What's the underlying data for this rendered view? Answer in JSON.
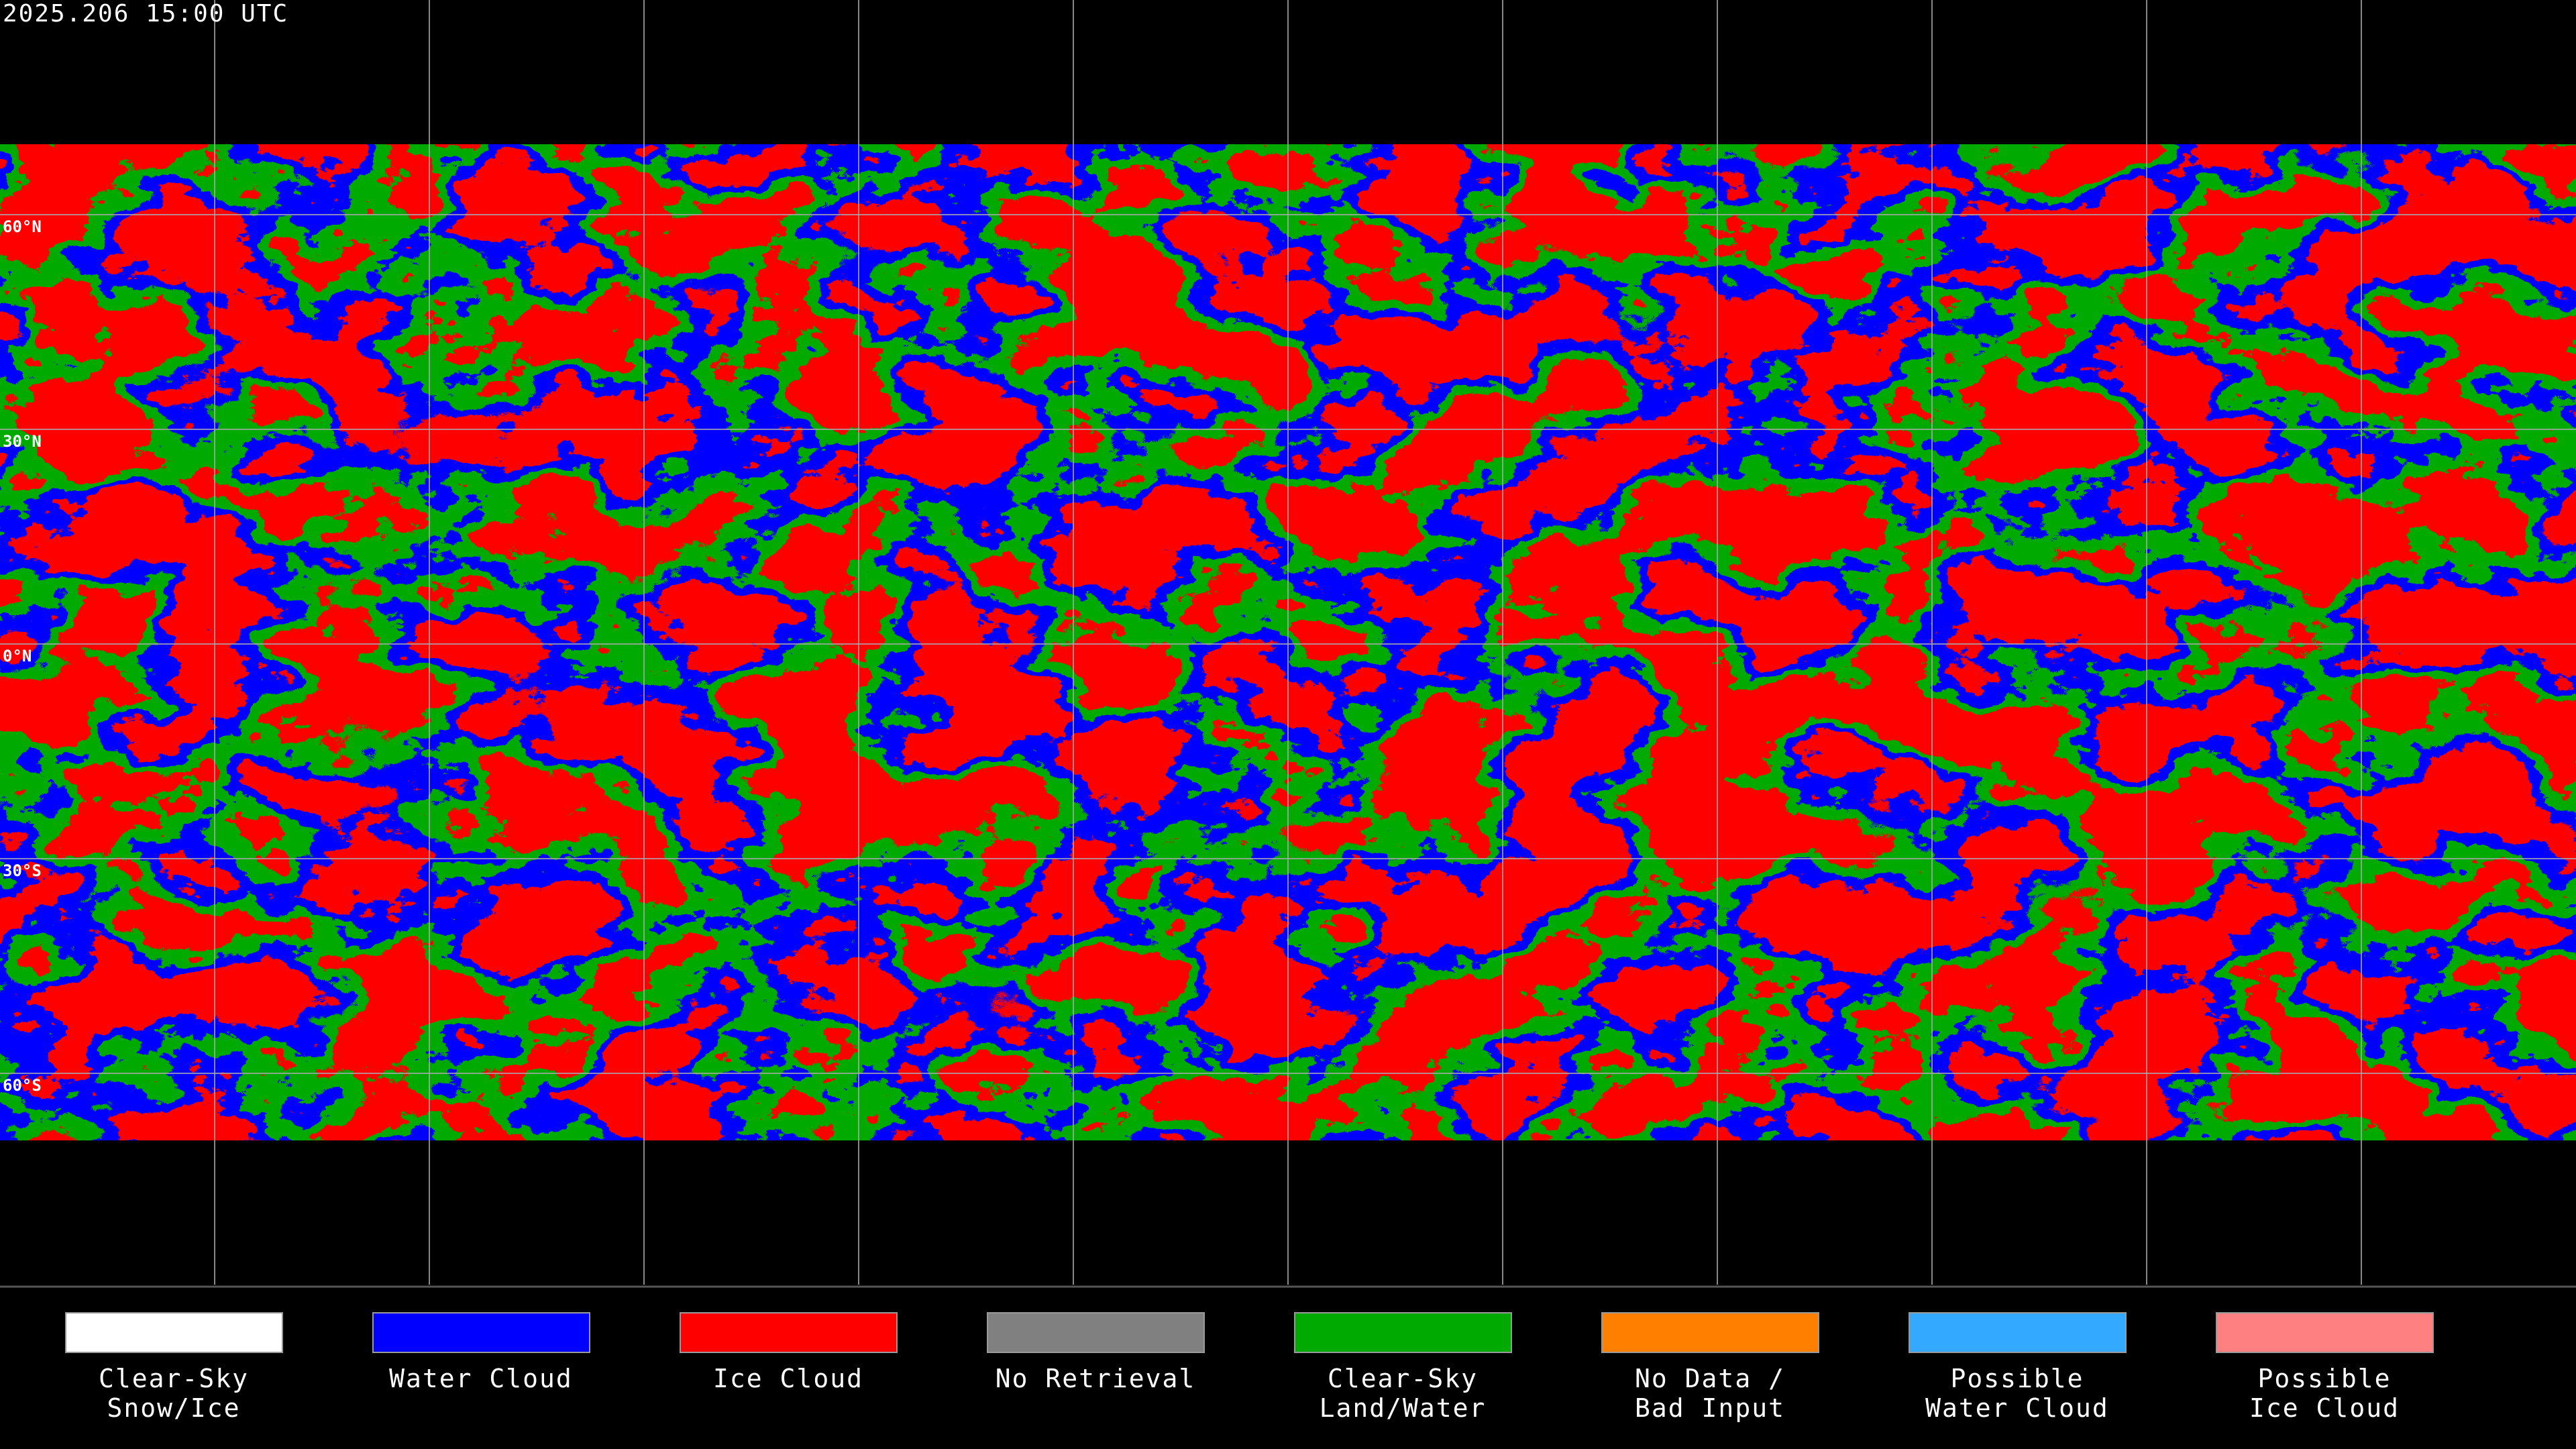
{
  "header": {
    "title": "2025.206 15:00 UTC"
  },
  "lat_labels": [
    "60°N",
    "30°N",
    "0°N",
    "30°S",
    "60°S"
  ],
  "legend": [
    {
      "lines": [
        "Clear-Sky",
        "Snow/Ice"
      ],
      "color": "#ffffff"
    },
    {
      "lines": [
        "Water Cloud"
      ],
      "color": "#0000ff"
    },
    {
      "lines": [
        "Ice Cloud"
      ],
      "color": "#ff0000"
    },
    {
      "lines": [
        "No Retrieval"
      ],
      "color": "#808080"
    },
    {
      "lines": [
        "Clear-Sky",
        "Land/Water"
      ],
      "color": "#00aa00"
    },
    {
      "lines": [
        "No Data /",
        "Bad Input"
      ],
      "color": "#ff8000"
    },
    {
      "lines": [
        "Possible",
        "Water Cloud"
      ],
      "color": "#33aaff"
    },
    {
      "lines": [
        "Possible",
        "Ice Cloud"
      ],
      "color": "#ff8080"
    }
  ]
}
